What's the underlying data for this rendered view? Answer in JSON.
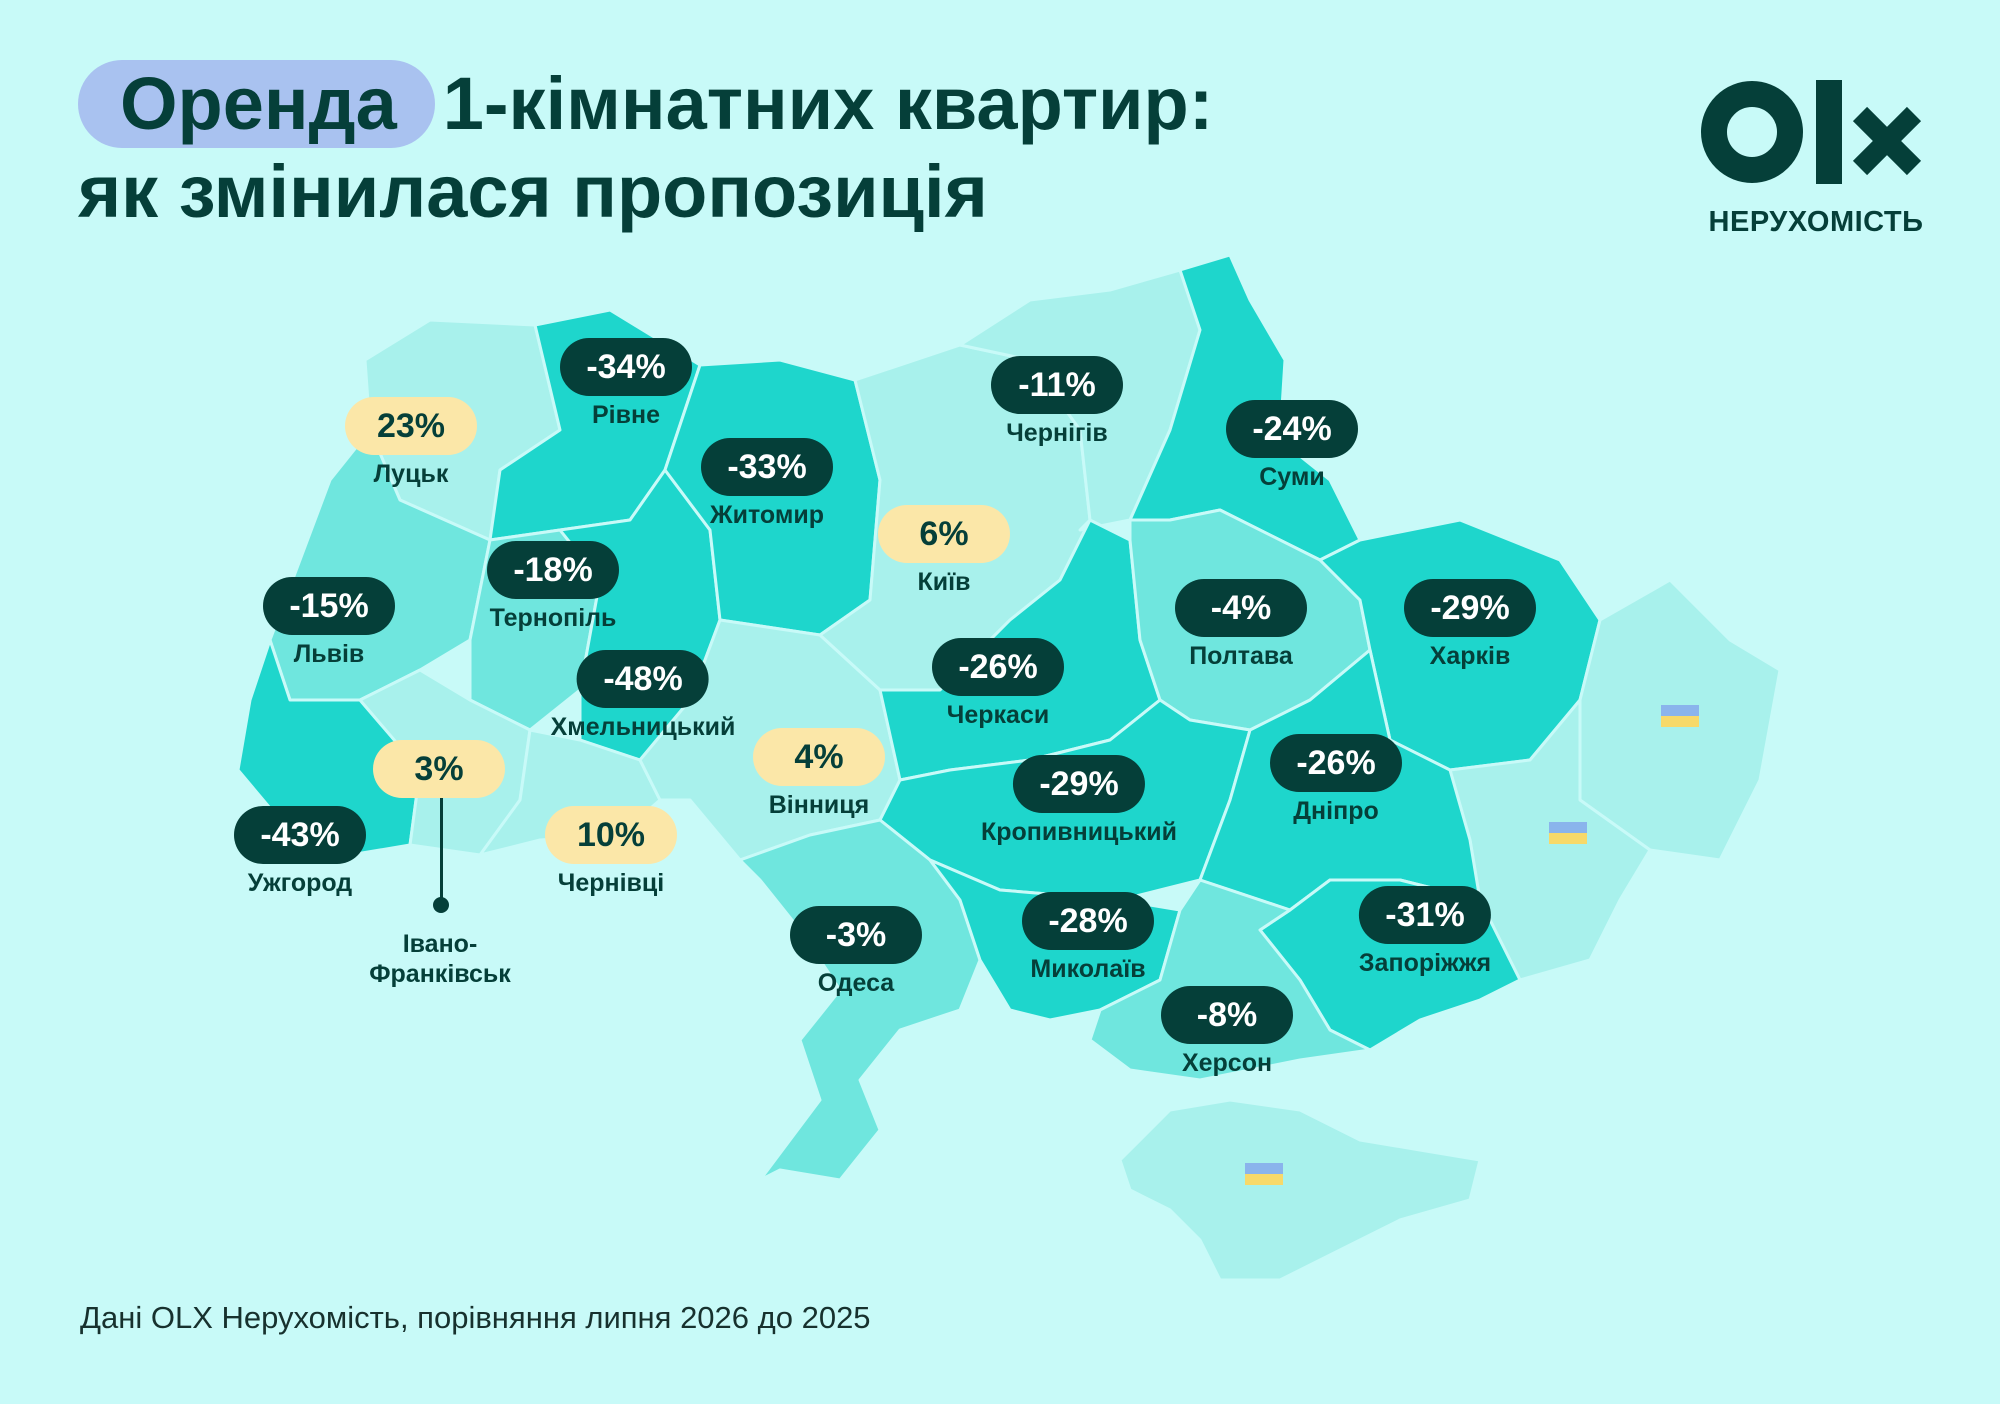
{
  "title": {
    "highlight": "Оренда",
    "line1_rest": "1-кімнатних квартир:",
    "line2": "як змінилася пропозиція"
  },
  "logo": {
    "mark": "OLX",
    "subtitle": "НЕРУХОМІСТЬ"
  },
  "colors": {
    "background": "#c8faf8",
    "dark_green": "#053f39",
    "title_pill": "#a9c2f0",
    "positive_pill": "#fbe7a8",
    "region_dark": "#1ed6cc",
    "region_mid": "#6fe6de",
    "region_light": "#a8f1ec"
  },
  "cities": [
    {
      "name": "Рівне",
      "change": "-34%",
      "sign": "neg"
    },
    {
      "name": "Луцьк",
      "change": "23%",
      "sign": "pos"
    },
    {
      "name": "Житомир",
      "change": "-33%",
      "sign": "neg"
    },
    {
      "name": "Чернігів",
      "change": "-11%",
      "sign": "neg"
    },
    {
      "name": "Суми",
      "change": "-24%",
      "sign": "neg"
    },
    {
      "name": "Київ",
      "change": "6%",
      "sign": "pos"
    },
    {
      "name": "Тернопіль",
      "change": "-18%",
      "sign": "neg"
    },
    {
      "name": "Львів",
      "change": "-15%",
      "sign": "neg"
    },
    {
      "name": "Хмельницький",
      "change": "-48%",
      "sign": "neg"
    },
    {
      "name": "Полтава",
      "change": "-4%",
      "sign": "neg"
    },
    {
      "name": "Харків",
      "change": "-29%",
      "sign": "neg"
    },
    {
      "name": "Черкаси",
      "change": "-26%",
      "sign": "neg"
    },
    {
      "name": "Вінниця",
      "change": "4%",
      "sign": "pos"
    },
    {
      "name": "Івано-Франківськ",
      "change": "3%",
      "sign": "pos"
    },
    {
      "name": "Ужгород",
      "change": "-43%",
      "sign": "neg"
    },
    {
      "name": "Чернівці",
      "change": "10%",
      "sign": "pos"
    },
    {
      "name": "Кропивницький",
      "change": "-29%",
      "sign": "neg"
    },
    {
      "name": "Дніпро",
      "change": "-26%",
      "sign": "neg"
    },
    {
      "name": "Одеса",
      "change": "-3%",
      "sign": "neg"
    },
    {
      "name": "Миколаїв",
      "change": "-28%",
      "sign": "neg"
    },
    {
      "name": "Запоріжжя",
      "change": "-31%",
      "sign": "neg"
    },
    {
      "name": "Херсон",
      "change": "-8%",
      "sign": "neg"
    }
  ],
  "ivano_label": {
    "line1": "Івано-",
    "line2": "Франківськ"
  },
  "source": "Дані OLX Нерухомість, порівняння липня 2026 до 2025"
}
